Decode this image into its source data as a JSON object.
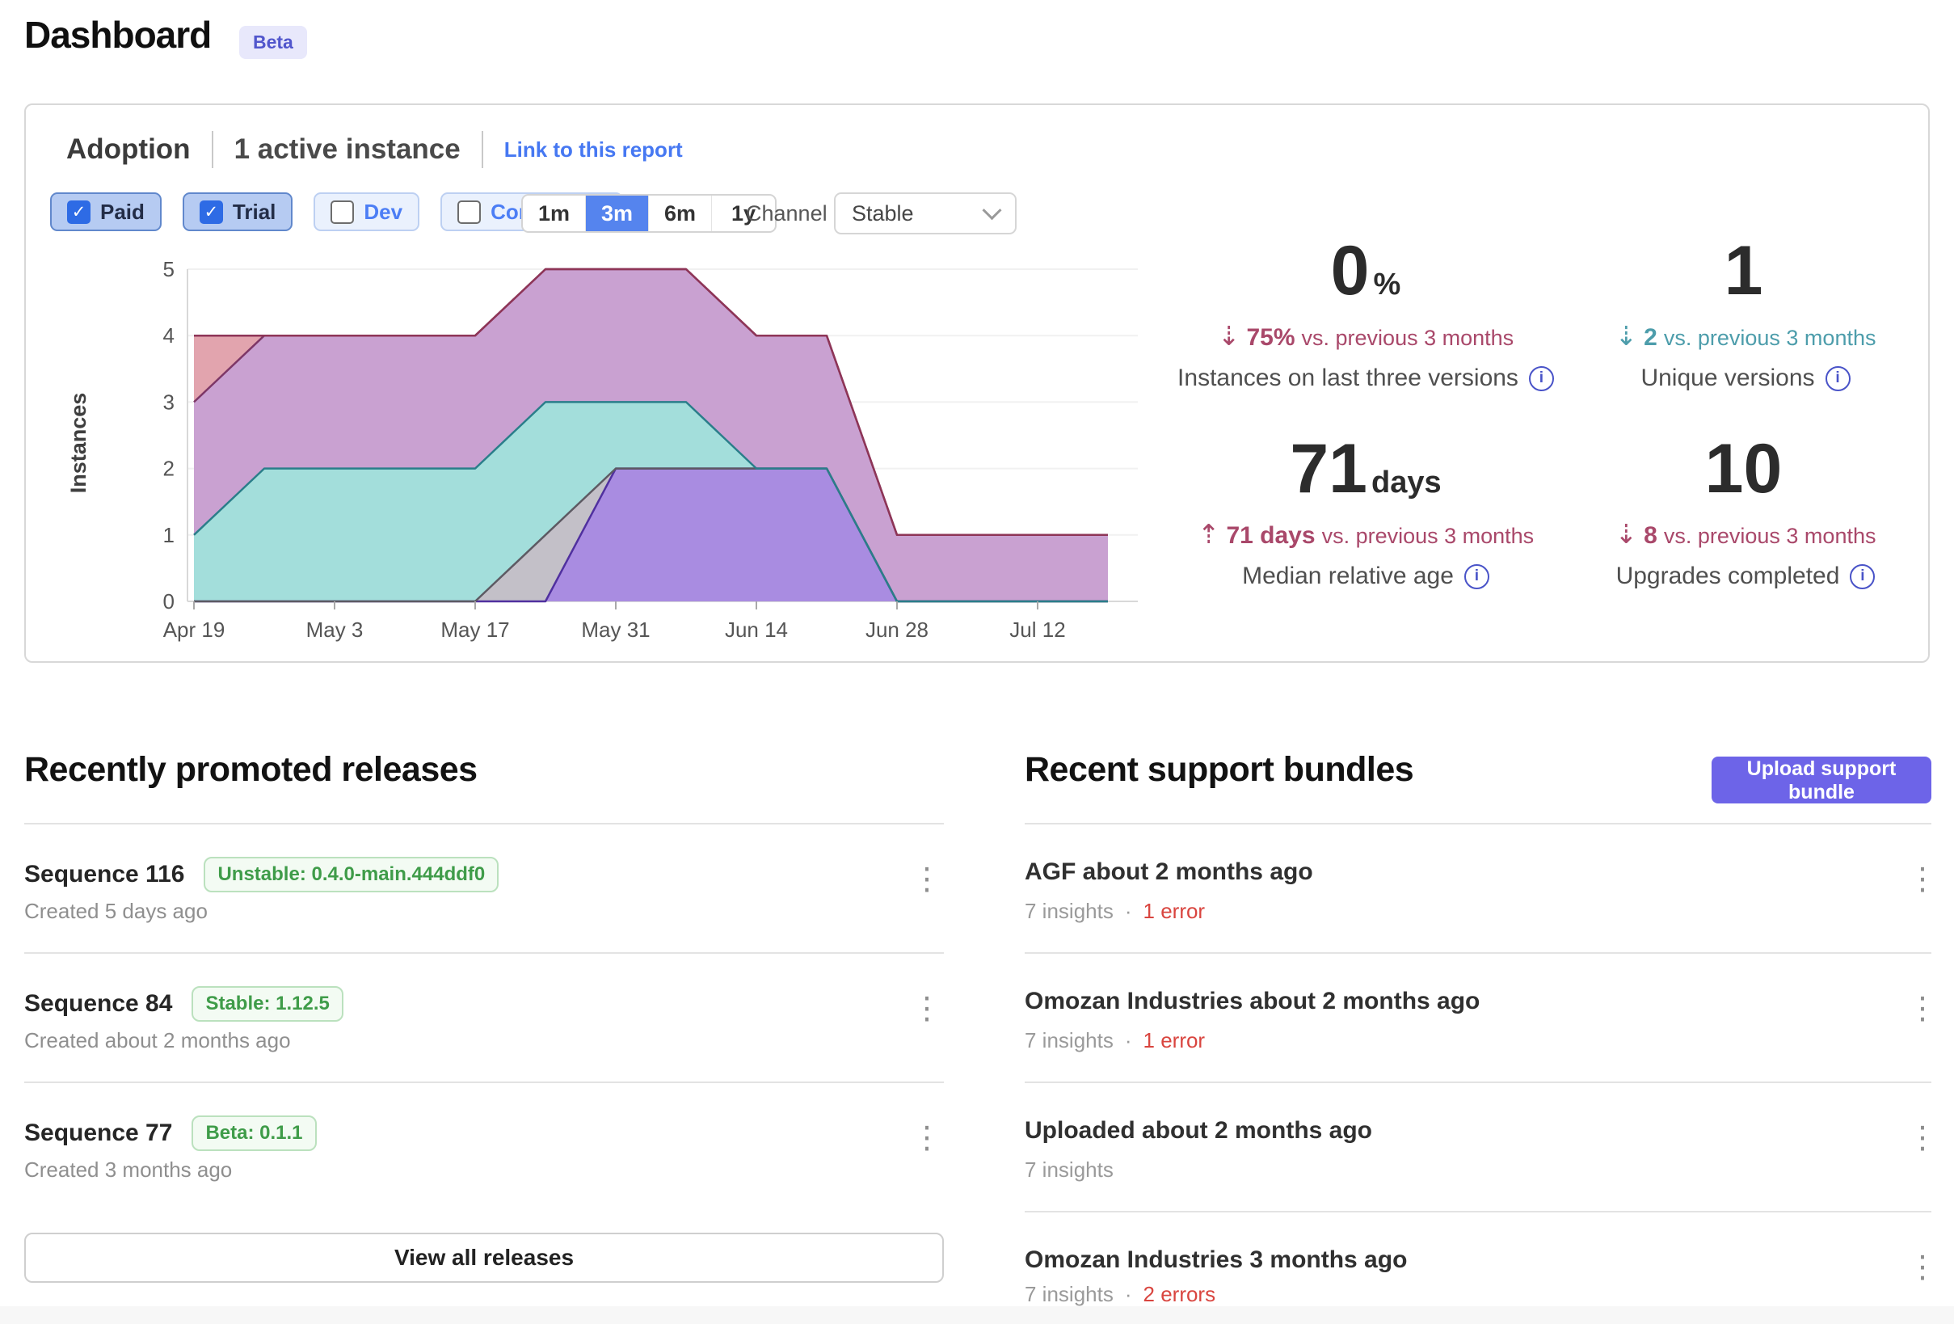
{
  "page": {
    "title": "Dashboard",
    "badge": "Beta"
  },
  "colors": {
    "link_blue": "#4678f2",
    "selected_range_blue": "#5584ee",
    "upload_indigo": "#6d64e8",
    "delta_red": "#a9486a",
    "delta_teal": "#4d9dab",
    "error_red": "#d9453f",
    "badge_green": "#3f9c49"
  },
  "adoption": {
    "title": "Adoption",
    "subtitle": "1 active instance",
    "link": "Link to this report",
    "filters": [
      {
        "label": "Paid",
        "checked": true
      },
      {
        "label": "Trial",
        "checked": true
      },
      {
        "label": "Dev",
        "checked": false
      },
      {
        "label": "Community",
        "checked": false
      }
    ],
    "ranges": [
      {
        "label": "1m",
        "selected": false
      },
      {
        "label": "3m",
        "selected": true
      },
      {
        "label": "6m",
        "selected": false
      },
      {
        "label": "1y",
        "selected": false
      }
    ],
    "channel": {
      "label": "Channel",
      "value": "Stable"
    },
    "stats": [
      {
        "value": "0",
        "unit": "%",
        "arrow": "⇣",
        "direction": "down",
        "delta": "75%",
        "suffix": "vs. previous 3 months",
        "label": "Instances on last three versions",
        "info": "i"
      },
      {
        "value": "1",
        "unit": "",
        "arrow": "⇣",
        "direction": "down",
        "delta": "2",
        "suffix": "vs. previous 3 months",
        "label": "Unique versions",
        "info": "i"
      },
      {
        "value": "71",
        "unit": "days",
        "arrow": "⇡",
        "direction": "up",
        "delta": "71 days",
        "suffix": "vs. previous 3 months",
        "label": "Median relative age",
        "info": "i"
      },
      {
        "value": "10",
        "unit": "",
        "arrow": "⇣",
        "direction": "down",
        "delta": "8",
        "suffix": "vs. previous 3 months",
        "label": "Upgrades completed",
        "info": "i"
      }
    ]
  },
  "chart_data": {
    "type": "area",
    "stacked": true,
    "ylabel": "Instances",
    "ylim": [
      0,
      5
    ],
    "y_ticks": [
      0,
      1,
      2,
      3,
      4,
      5
    ],
    "x": [
      "Apr 19",
      "Apr 26",
      "May 3",
      "May 10",
      "May 17",
      "May 24",
      "May 31",
      "Jun 7",
      "Jun 14",
      "Jun 21",
      "Jun 28",
      "Jul 5",
      "Jul 12",
      "Jul 19"
    ],
    "x_tick_indices": [
      0,
      2,
      4,
      6,
      8,
      10,
      12
    ],
    "x_tick_labels": [
      "Apr 19",
      "May 3",
      "May 17",
      "May 31",
      "Jun 14",
      "Jun 28",
      "Jul 12"
    ],
    "grid": true,
    "legend": "none",
    "series": [
      {
        "name": "version-violet",
        "fill": "#a98ce1",
        "stroke": "#50309f",
        "values": [
          0,
          0,
          0,
          0,
          0,
          0,
          2,
          2,
          2,
          2,
          0,
          0,
          0,
          0
        ]
      },
      {
        "name": "version-gray",
        "fill": "#c3c0c8",
        "stroke": "#5d5a63",
        "values": [
          0,
          0,
          0,
          0,
          0,
          1,
          0,
          0,
          0,
          0,
          0,
          0,
          0,
          0
        ]
      },
      {
        "name": "version-teal",
        "fill": "#a3dedb",
        "stroke": "#2a7e8a",
        "values": [
          1,
          2,
          2,
          2,
          2,
          2,
          1,
          1,
          0,
          0,
          0,
          0,
          0,
          0
        ]
      },
      {
        "name": "version-magenta",
        "fill": "#c9a1d1",
        "stroke": "#7d3767",
        "values": [
          2,
          2,
          2,
          2,
          2,
          2,
          2,
          2,
          2,
          2,
          1,
          1,
          1,
          1
        ]
      },
      {
        "name": "version-red",
        "fill": "#e2a4ae",
        "stroke": "#8e3557",
        "values": [
          1,
          0,
          0,
          0,
          0,
          0,
          0,
          0,
          0,
          0,
          0,
          0,
          0,
          0
        ]
      }
    ]
  },
  "releases": {
    "heading": "Recently promoted releases",
    "view_all": "View all releases",
    "items": [
      {
        "title": "Sequence 116",
        "badge": "Unstable: 0.4.0-main.444ddf0",
        "created": "Created 5 days ago"
      },
      {
        "title": "Sequence 84",
        "badge": "Stable: 1.12.5",
        "created": "Created about 2 months ago"
      },
      {
        "title": "Sequence 77",
        "badge": "Beta: 0.1.1",
        "created": "Created 3 months ago"
      }
    ]
  },
  "bundles": {
    "heading": "Recent support bundles",
    "upload": "Upload support bundle",
    "items": [
      {
        "title": "AGF about 2 months ago",
        "insights": "7 insights",
        "sep": "·",
        "errors": "1 error"
      },
      {
        "title": "Omozan Industries about 2 months ago",
        "insights": "7 insights",
        "sep": "·",
        "errors": "1 error"
      },
      {
        "title": "Uploaded about 2 months ago",
        "insights": "7 insights",
        "sep": "",
        "errors": ""
      },
      {
        "title": "Omozan Industries 3 months ago",
        "insights": "7 insights",
        "sep": "·",
        "errors": "2 errors"
      }
    ]
  }
}
